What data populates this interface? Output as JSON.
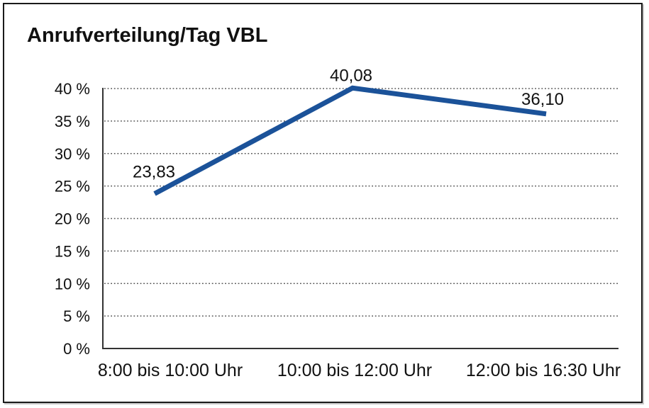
{
  "title": "Anrufverteilung/Tag VBL",
  "colors": {
    "line": "#1b5299",
    "grid": "#555555",
    "axis": "#333333",
    "text": "#111111",
    "border": "#1a1a1a",
    "background": "#ffffff"
  },
  "chart_data": {
    "type": "line",
    "title": "Anrufverteilung/Tag VBL",
    "categories": [
      "8:00 bis 10:00 Uhr",
      "10:00 bis 12:00 Uhr",
      "12:00 bis 16:30 Uhr"
    ],
    "values": [
      23.83,
      40.08,
      36.1
    ],
    "point_labels": [
      "23,83",
      "40,08",
      "36,10"
    ],
    "ytick_values": [
      0,
      5,
      10,
      15,
      20,
      25,
      30,
      35,
      40
    ],
    "ytick_labels": [
      "0 %",
      "5 %",
      "10 %",
      "15 %",
      "20 %",
      "25 %",
      "30 %",
      "35 %",
      "40 %"
    ],
    "ylim": [
      0,
      40
    ],
    "xlabel": "",
    "ylabel": "",
    "grid": "horizontal-dotted",
    "legend": "none",
    "line_style": "thick solid, no markers"
  }
}
